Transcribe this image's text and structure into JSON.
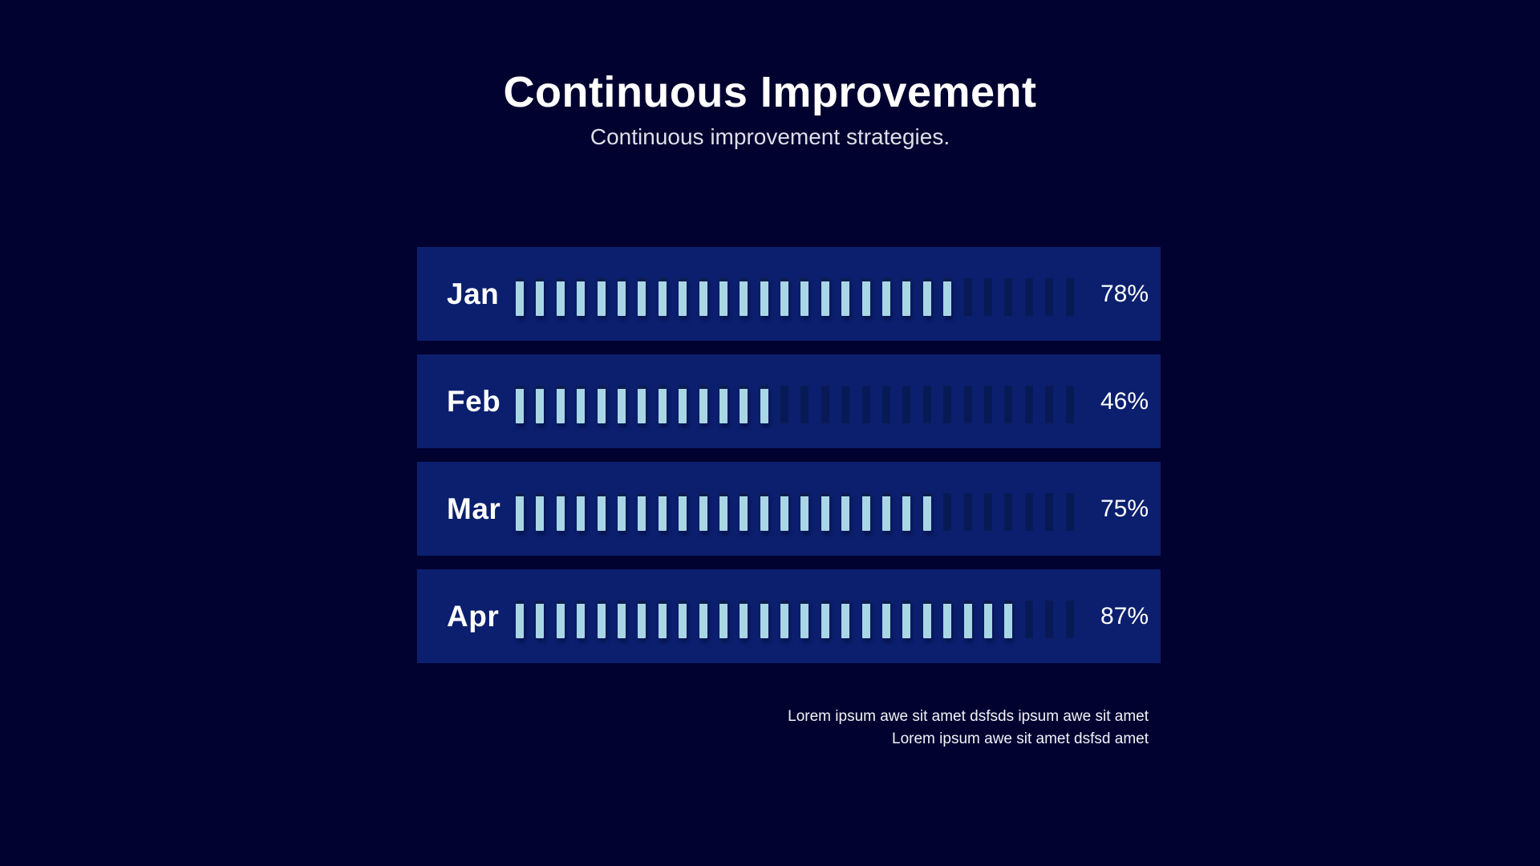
{
  "header": {
    "title": "Continuous Improvement",
    "subtitle": "Continuous improvement strategies."
  },
  "chart_data": {
    "type": "bar",
    "variant": "segmented-tick-progress-bars",
    "categories": [
      "Jan",
      "Feb",
      "Mar",
      "Apr"
    ],
    "values": [
      78,
      46,
      75,
      87
    ],
    "value_labels": [
      "78%",
      "46%",
      "75%",
      "87%"
    ],
    "total_ticks_per_row": 28,
    "filled_ticks": [
      22,
      13,
      21,
      25
    ],
    "title": "Continuous Improvement",
    "xlabel": "",
    "ylabel": "",
    "value_range": [
      0,
      100
    ],
    "grid": false,
    "legend": false
  },
  "footer": {
    "line1": "Lorem ipsum awe sit amet dsfsds ipsum awe sit amet",
    "line2": "Lorem ipsum awe sit amet dsfsd amet"
  },
  "colors": {
    "background": "#020230",
    "panel": "#0b1f6e",
    "tick_filled": "#a9d6e5",
    "tick_empty": "#081a55",
    "title_text": "#ffffff",
    "subtitle_text": "#dfdfea"
  }
}
